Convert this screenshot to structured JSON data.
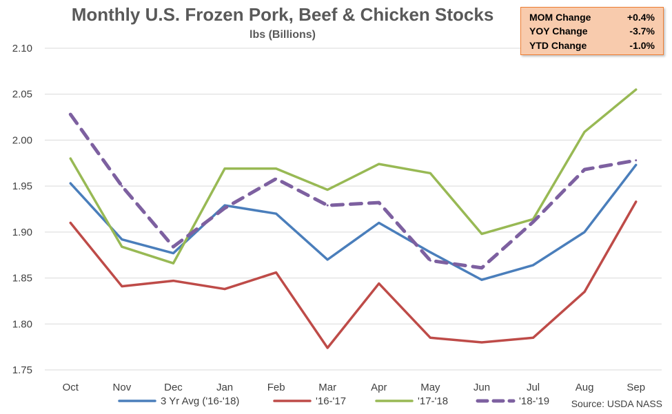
{
  "title": "Monthly U.S. Frozen Pork, Beef & Chicken Stocks",
  "subtitle": "lbs (Billions)",
  "stats_box": {
    "rows": [
      {
        "label": "MOM Change",
        "value": "+0.4%"
      },
      {
        "label": "YOY Change",
        "value": "-3.7%"
      },
      {
        "label": "YTD Change",
        "value": "-1.0%"
      }
    ],
    "background": "#f8cbad",
    "border": "#ed7d31"
  },
  "source": "Source: USDA NASS",
  "chart_data": {
    "type": "line",
    "categories": [
      "Oct",
      "Nov",
      "Dec",
      "Jan",
      "Feb",
      "Mar",
      "Apr",
      "May",
      "Jun",
      "Jul",
      "Aug",
      "Sep"
    ],
    "ylim": [
      1.75,
      2.1
    ],
    "yticks": [
      "1.75",
      "1.80",
      "1.85",
      "1.90",
      "1.95",
      "2.00",
      "2.05",
      "2.10"
    ],
    "grid": true,
    "legend_position": "bottom",
    "series": [
      {
        "name": "3 Yr Avg ('16-'18)",
        "color": "#4a7ebb",
        "dashed": false,
        "values": [
          1.953,
          1.892,
          1.877,
          1.929,
          1.92,
          1.87,
          1.91,
          1.878,
          1.848,
          1.864,
          1.9,
          1.973
        ]
      },
      {
        "name": "'16-'17",
        "color": "#be4b48",
        "dashed": false,
        "values": [
          1.91,
          1.841,
          1.847,
          1.838,
          1.856,
          1.774,
          1.844,
          1.785,
          1.78,
          1.785,
          1.835,
          1.933
        ]
      },
      {
        "name": "'17-'18",
        "color": "#98b954",
        "dashed": false,
        "values": [
          1.98,
          1.884,
          1.866,
          1.969,
          1.969,
          1.946,
          1.974,
          1.964,
          1.898,
          1.914,
          2.009,
          2.055
        ]
      },
      {
        "name": "'18-'19",
        "color": "#7d60a0",
        "dashed": true,
        "values": [
          2.028,
          1.95,
          1.884,
          1.926,
          1.958,
          1.929,
          1.932,
          1.869,
          1.861,
          1.911,
          1.968,
          1.978
        ]
      }
    ]
  }
}
